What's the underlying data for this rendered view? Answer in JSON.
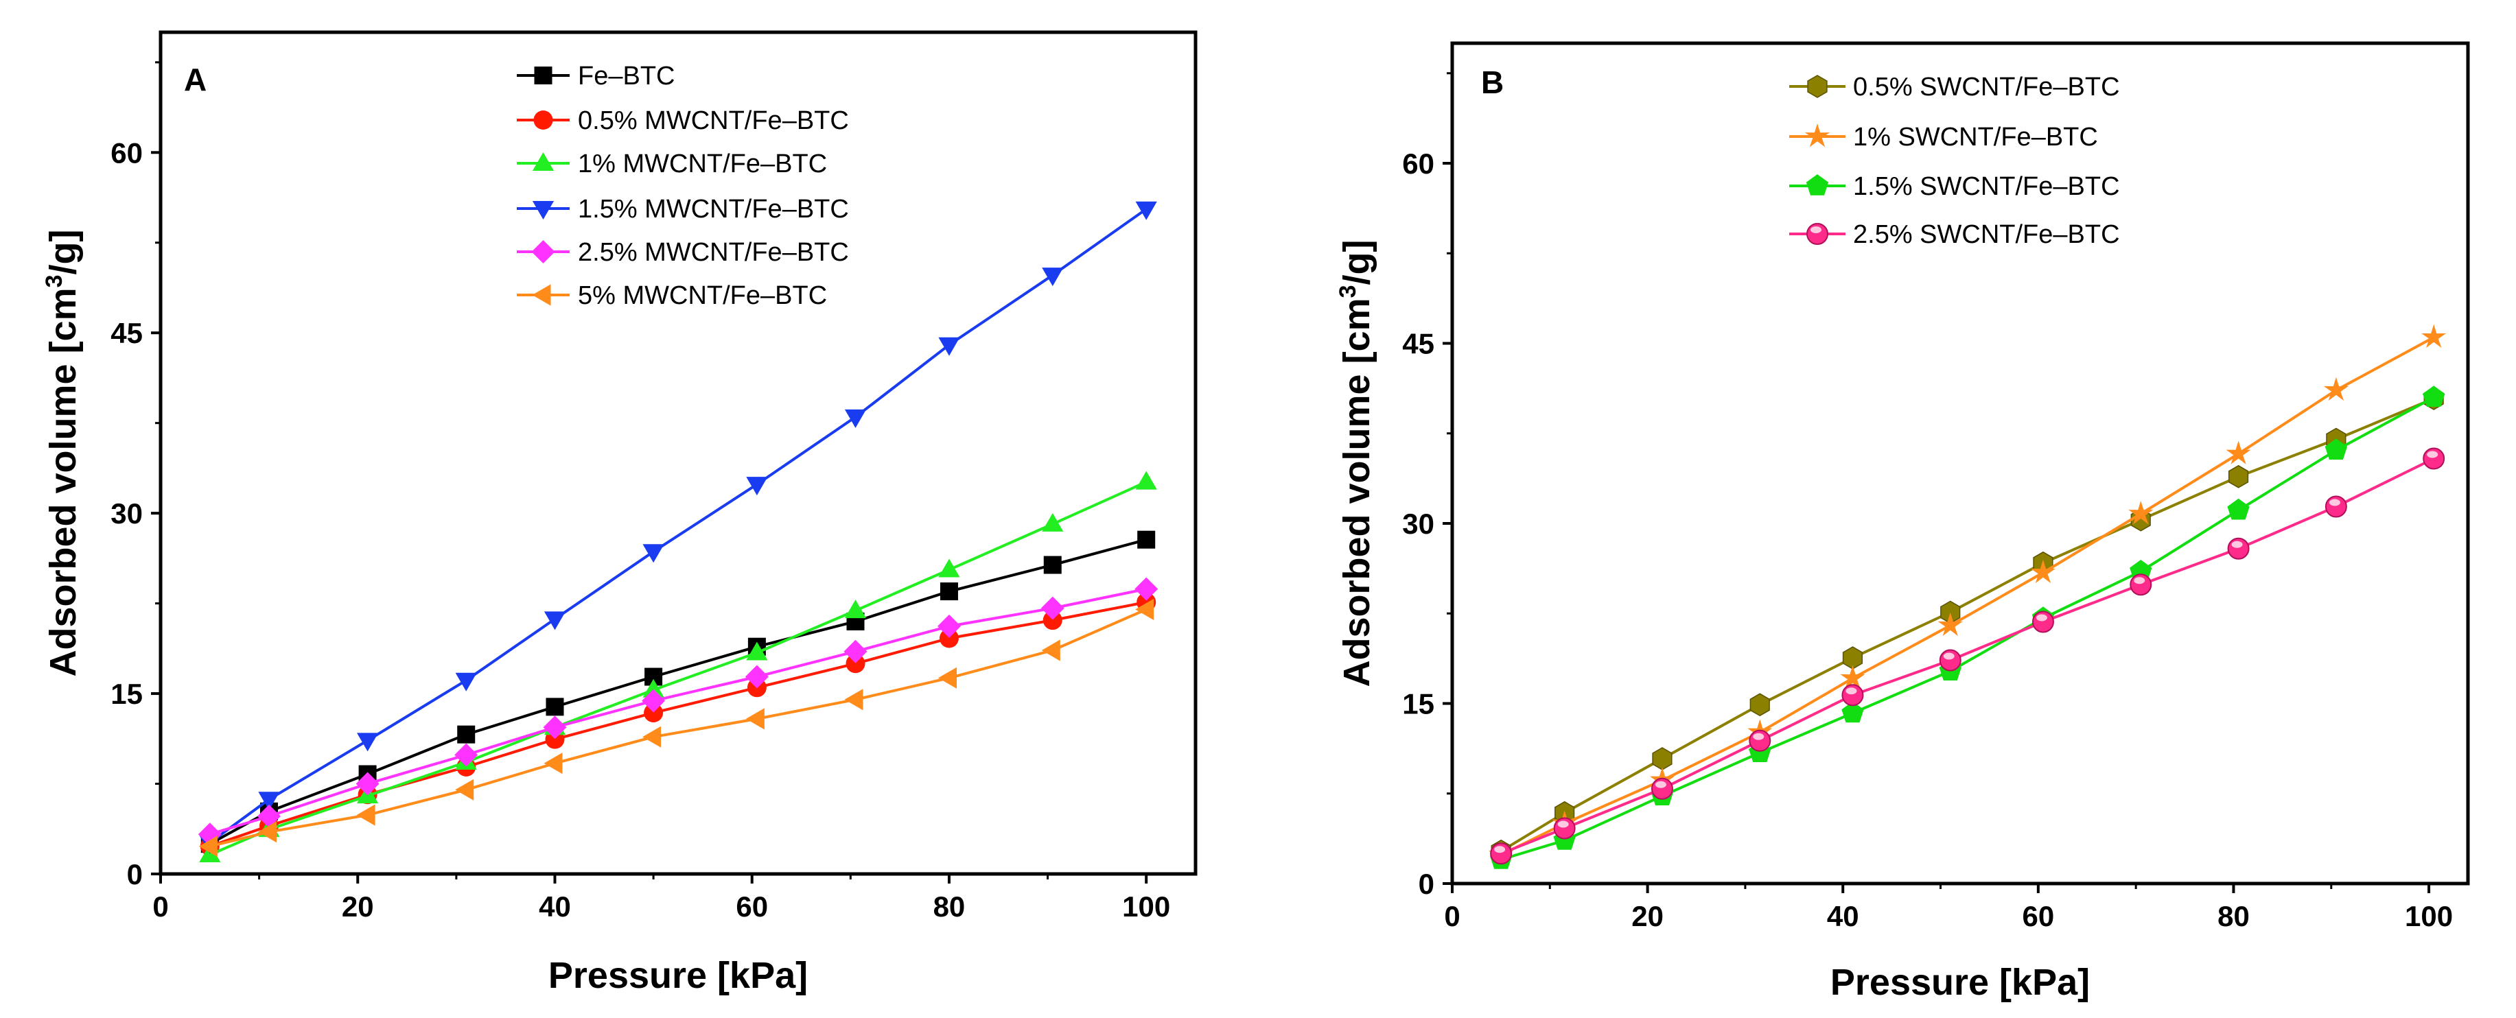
{
  "chart_data": [
    {
      "type": "line",
      "panel_label": "A",
      "xlabel": "Pressure [kPa]",
      "ylabel_main": "Adsorbed volume [cm",
      "ylabel_sup": "3",
      "ylabel_tail": "/g]",
      "xlim": [
        0,
        105
      ],
      "ylim": [
        0,
        70
      ],
      "xticks": [
        0,
        20,
        40,
        60,
        80,
        100
      ],
      "yticks": [
        0,
        15,
        30,
        45,
        60
      ],
      "grid": false,
      "legend_position": "top-center",
      "x": [
        5,
        11,
        21,
        31,
        40,
        50,
        60.5,
        70.5,
        80,
        90.5,
        100
      ],
      "series": [
        {
          "name": "Fe–BTC",
          "color": "#000000",
          "marker": "square",
          "values": [
            2.5,
            5.2,
            8.3,
            11.6,
            13.9,
            16.4,
            18.9,
            21.0,
            23.5,
            25.7,
            27.8
          ]
        },
        {
          "name": "0.5% MWCNT/Fe–BTC",
          "color": "#ff1a00",
          "marker": "circle",
          "values": [
            2.3,
            4.0,
            6.6,
            8.9,
            11.2,
            13.4,
            15.5,
            17.5,
            19.6,
            21.1,
            22.6
          ]
        },
        {
          "name": "1% MWCNT/Fe–BTC",
          "color": "#22ee22",
          "marker": "triangle-up",
          "values": [
            1.6,
            3.7,
            6.5,
            9.3,
            12.2,
            15.3,
            18.4,
            21.9,
            25.3,
            29.1,
            32.6
          ]
        },
        {
          "name": "1.5% MWCNT/Fe–BTC",
          "color": "#1a3cf0",
          "marker": "triangle-down",
          "values": [
            2.6,
            6.2,
            11.1,
            16.1,
            21.2,
            26.8,
            32.4,
            38.0,
            44.0,
            49.8,
            55.3
          ]
        },
        {
          "name": "2.5% MWCNT/Fe–BTC",
          "color": "#ff33ff",
          "marker": "diamond",
          "values": [
            3.3,
            4.8,
            7.5,
            9.9,
            12.2,
            14.4,
            16.4,
            18.5,
            20.6,
            22.1,
            23.7
          ]
        },
        {
          "name": "5% MWCNT/Fe–BTC",
          "color": "#ff8c1a",
          "marker": "triangle-left",
          "values": [
            2.3,
            3.5,
            4.9,
            7.0,
            9.2,
            11.4,
            12.9,
            14.5,
            16.3,
            18.6,
            22.0
          ]
        }
      ]
    },
    {
      "type": "line",
      "panel_label": "B",
      "xlabel": "Pressure [kPa]",
      "ylabel_main": "Adsorbed volume [cm",
      "ylabel_sup": "3",
      "ylabel_tail": "/g]",
      "xlim": [
        0,
        104
      ],
      "ylim": [
        0,
        70
      ],
      "xticks": [
        0,
        20,
        40,
        60,
        80,
        100
      ],
      "yticks": [
        0,
        15,
        30,
        45,
        60
      ],
      "grid": false,
      "legend_position": "top-center",
      "x": [
        5,
        11.5,
        21.5,
        31.5,
        41,
        51,
        60.5,
        70.5,
        80.5,
        90.5,
        100.5
      ],
      "series": [
        {
          "name": "0.5% SWCNT/Fe–BTC",
          "color": "#8b8000",
          "marker": "hexagon",
          "values": [
            2.7,
            5.9,
            10.4,
            14.9,
            18.8,
            22.6,
            26.7,
            30.3,
            33.9,
            37.0,
            40.4
          ]
        },
        {
          "name": "1% SWCNT/Fe–BTC",
          "color": "#ff8c1a",
          "marker": "star",
          "values": [
            2.4,
            5.0,
            8.6,
            12.6,
            17.1,
            21.5,
            25.9,
            30.8,
            35.8,
            41.1,
            45.5
          ]
        },
        {
          "name": "1.5% SWCNT/Fe–BTC",
          "color": "#11dd11",
          "marker": "pentagon",
          "values": [
            2.0,
            3.6,
            7.3,
            10.9,
            14.2,
            17.7,
            22.1,
            26.0,
            31.1,
            36.1,
            40.5
          ]
        },
        {
          "name": "2.5% SWCNT/Fe–BTC",
          "color": "#ff2b8a",
          "marker": "sphere",
          "values": [
            2.5,
            4.6,
            7.9,
            11.9,
            15.7,
            18.6,
            21.8,
            24.9,
            27.9,
            31.4,
            35.4
          ]
        }
      ]
    }
  ]
}
